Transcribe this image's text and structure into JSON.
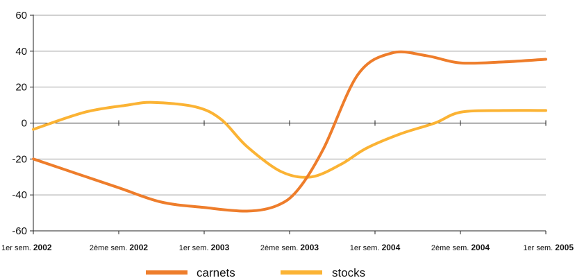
{
  "chart_data": {
    "type": "line",
    "categories": [
      {
        "prefix": "1er sem.",
        "year": "2002"
      },
      {
        "prefix": "2ème sem.",
        "year": "2002"
      },
      {
        "prefix": "1er sem.",
        "year": "2003"
      },
      {
        "prefix": "2ème sem.",
        "year": "2003"
      },
      {
        "prefix": "1er sem.",
        "year": "2004"
      },
      {
        "prefix": "2ème sem.",
        "year": "2004"
      },
      {
        "prefix": "1er sem.",
        "year": "2005"
      }
    ],
    "ylim": [
      -60,
      60
    ],
    "yticks": [
      60,
      40,
      20,
      0,
      -20,
      -40,
      -60
    ],
    "grid": true,
    "legend_position": "bottom",
    "series": [
      {
        "name": "carnets",
        "color": "#ee7d2b",
        "points": [
          {
            "x": 0,
            "y": -20
          },
          {
            "x": 0.5,
            "y": -28
          },
          {
            "x": 1.0,
            "y": -36
          },
          {
            "x": 1.5,
            "y": -44
          },
          {
            "x": 2.0,
            "y": -47
          },
          {
            "x": 2.5,
            "y": -49
          },
          {
            "x": 2.85,
            "y": -46
          },
          {
            "x": 3.1,
            "y": -37
          },
          {
            "x": 3.4,
            "y": -14
          },
          {
            "x": 3.8,
            "y": 27
          },
          {
            "x": 4.2,
            "y": 39
          },
          {
            "x": 4.6,
            "y": 37.5
          },
          {
            "x": 5.0,
            "y": 33.5
          },
          {
            "x": 5.5,
            "y": 34
          },
          {
            "x": 6.0,
            "y": 35.5
          }
        ]
      },
      {
        "name": "stocks",
        "color": "#fbb334",
        "points": [
          {
            "x": 0,
            "y": -3.5
          },
          {
            "x": 0.6,
            "y": 6
          },
          {
            "x": 1.1,
            "y": 10
          },
          {
            "x": 1.4,
            "y": 11.5
          },
          {
            "x": 1.9,
            "y": 9
          },
          {
            "x": 2.2,
            "y": 2
          },
          {
            "x": 2.5,
            "y": -13
          },
          {
            "x": 2.9,
            "y": -27
          },
          {
            "x": 3.25,
            "y": -30
          },
          {
            "x": 3.6,
            "y": -23
          },
          {
            "x": 3.9,
            "y": -14
          },
          {
            "x": 4.3,
            "y": -6
          },
          {
            "x": 4.7,
            "y": 0
          },
          {
            "x": 5.0,
            "y": 6
          },
          {
            "x": 5.5,
            "y": 7
          },
          {
            "x": 6.0,
            "y": 7
          }
        ]
      }
    ]
  }
}
